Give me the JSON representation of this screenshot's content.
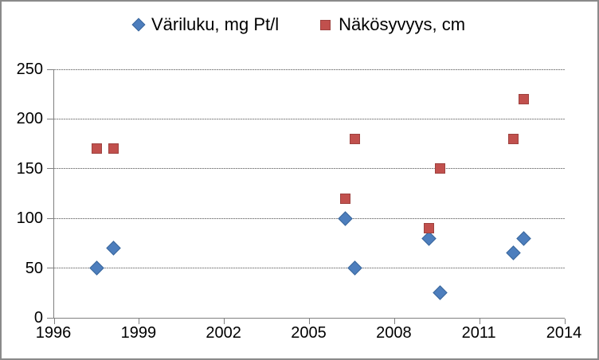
{
  "legend": {
    "items": [
      {
        "label": "Väriluku, mg Pt/l",
        "marker": "diamond-icon",
        "color": "#4d7ebd"
      },
      {
        "label": "Näkösyvyys, cm",
        "marker": "square-icon",
        "color": "#c1504d"
      }
    ]
  },
  "colors": {
    "series1_fill": "#4d7ebd",
    "series1_border": "#3a679c",
    "series2_fill": "#c1504d",
    "series2_border": "#9e423f",
    "gridline": "#8c8c8c",
    "axis": "#808080",
    "text": "#000000",
    "frame_border": "#8a8a8a",
    "background": "#ffffff"
  },
  "chart_data": {
    "type": "scatter",
    "title": "",
    "xlabel": "",
    "ylabel": "",
    "xlim": [
      1996,
      2014
    ],
    "ylim": [
      0,
      250
    ],
    "x_ticks": [
      1996,
      1999,
      2002,
      2005,
      2008,
      2011,
      2014
    ],
    "x_tick_labels": [
      "1996",
      "1999",
      "2002",
      "2005",
      "2008",
      "2011",
      "2014"
    ],
    "y_ticks": [
      0,
      50,
      100,
      150,
      200,
      250
    ],
    "y_tick_labels": [
      "0",
      "50",
      "100",
      "150",
      "200",
      "250"
    ],
    "grid": true,
    "legend_position": "top-center",
    "series": [
      {
        "name": "Väriluku, mg Pt/l",
        "marker": "diamond",
        "color": "#4d7ebd",
        "points": [
          {
            "x": 1997.5,
            "y": 50
          },
          {
            "x": 1998.1,
            "y": 70
          },
          {
            "x": 2006.25,
            "y": 100
          },
          {
            "x": 2006.6,
            "y": 50
          },
          {
            "x": 2009.2,
            "y": 80
          },
          {
            "x": 2009.6,
            "y": 25
          },
          {
            "x": 2012.2,
            "y": 65
          },
          {
            "x": 2012.55,
            "y": 80
          }
        ]
      },
      {
        "name": "Näkösyvyys, cm",
        "marker": "square",
        "color": "#c1504d",
        "points": [
          {
            "x": 1997.5,
            "y": 170
          },
          {
            "x": 1998.1,
            "y": 170
          },
          {
            "x": 2006.25,
            "y": 120
          },
          {
            "x": 2006.6,
            "y": 180
          },
          {
            "x": 2009.2,
            "y": 90
          },
          {
            "x": 2009.6,
            "y": 150
          },
          {
            "x": 2012.2,
            "y": 180
          },
          {
            "x": 2012.55,
            "y": 220
          }
        ]
      }
    ]
  }
}
